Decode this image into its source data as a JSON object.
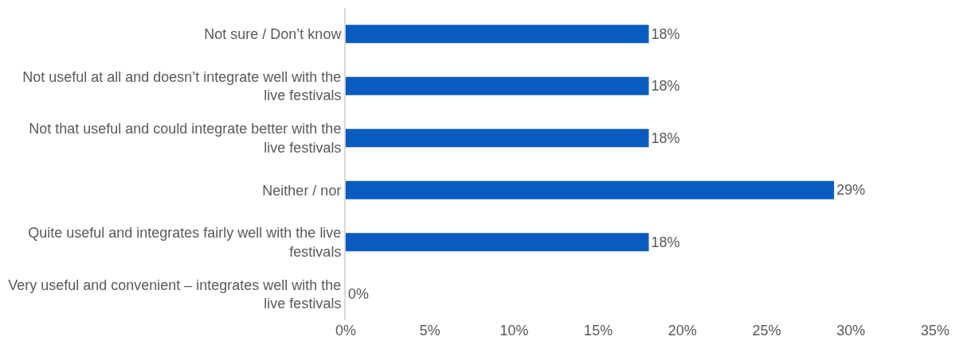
{
  "chart_data": {
    "type": "bar",
    "orientation": "horizontal",
    "categories": [
      "Not sure / Don’t know",
      "Not useful at all and doesn’t integrate well with the live festivals",
      "Not that useful and could integrate better with the live festivals",
      "Neither / nor",
      "Quite useful and integrates fairly well with the live festivals",
      "Very useful and convenient – integrates well with the live festivals"
    ],
    "values": [
      18,
      18,
      18,
      29,
      18,
      0
    ],
    "value_labels": [
      "18%",
      "18%",
      "18%",
      "29%",
      "18%",
      "0%"
    ],
    "color": "#0a5bc0",
    "xlim": [
      0,
      35
    ],
    "xticks": [
      {
        "value": 0,
        "label": "0%"
      },
      {
        "value": 5,
        "label": "5%"
      },
      {
        "value": 10,
        "label": "10%"
      },
      {
        "value": 15,
        "label": "15%"
      },
      {
        "value": 20,
        "label": "20%"
      },
      {
        "value": 25,
        "label": "25%"
      },
      {
        "value": 30,
        "label": "30%"
      },
      {
        "value": 35,
        "label": "35%"
      }
    ],
    "legend": false
  }
}
